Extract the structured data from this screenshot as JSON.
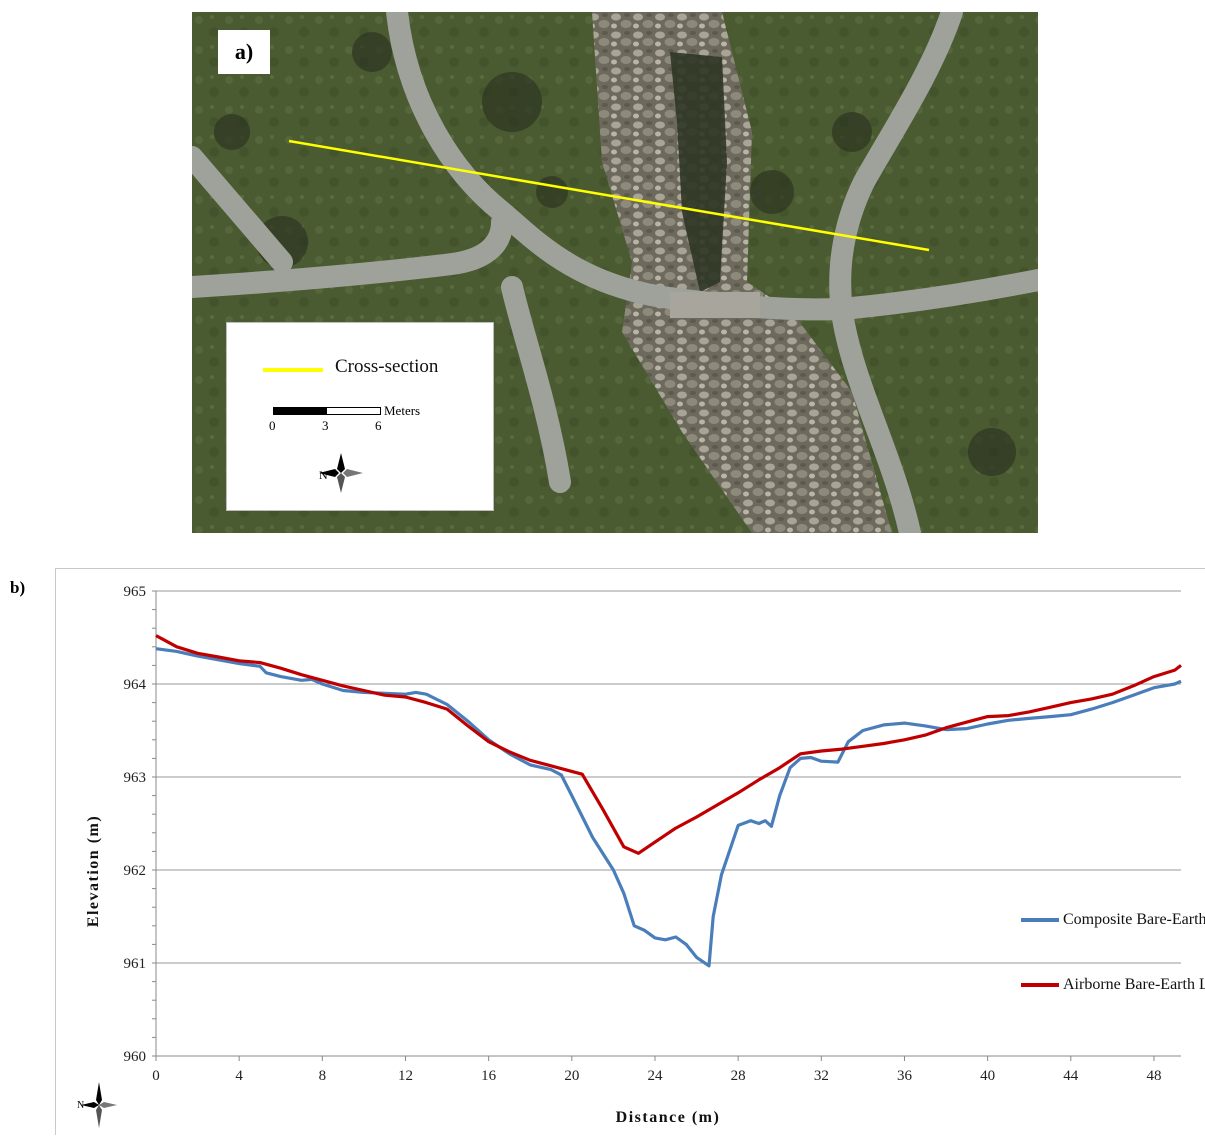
{
  "panel_a": {
    "label": "a)",
    "legend": {
      "line_label": "Cross-section",
      "line_color": "#ffff00",
      "scale_unit": "Meters",
      "scale_ticks": [
        "0",
        "3",
        "6"
      ],
      "north_label": "N"
    }
  },
  "panel_b": {
    "label": "b)",
    "north_label": "N"
  },
  "chart_data": {
    "type": "line",
    "xlabel": "Distance (m)",
    "ylabel": "Elevation (m)",
    "xlim": [
      0,
      49.3
    ],
    "ylim": [
      960,
      965
    ],
    "xticks": [
      0,
      4,
      8,
      12,
      16,
      20,
      24,
      28,
      32,
      36,
      40,
      44,
      48
    ],
    "yticks": [
      960,
      961,
      962,
      963,
      964,
      965
    ],
    "grid": "horizontal",
    "legend_position": "right",
    "series": [
      {
        "name": "Composite Bare-Earth LiDAR",
        "color": "#4a7ebb",
        "points": [
          [
            0,
            964.38
          ],
          [
            1,
            964.35
          ],
          [
            2,
            964.3
          ],
          [
            3,
            964.26
          ],
          [
            4,
            964.22
          ],
          [
            5,
            964.19
          ],
          [
            5.3,
            964.12
          ],
          [
            6,
            964.08
          ],
          [
            7,
            964.04
          ],
          [
            7.5,
            964.05
          ],
          [
            8,
            964.0
          ],
          [
            9,
            963.93
          ],
          [
            10,
            963.91
          ],
          [
            11,
            963.9
          ],
          [
            12,
            963.89
          ],
          [
            12.5,
            963.91
          ],
          [
            13,
            963.89
          ],
          [
            14,
            963.78
          ],
          [
            15,
            963.6
          ],
          [
            16,
            963.4
          ],
          [
            17,
            963.25
          ],
          [
            18,
            963.13
          ],
          [
            19,
            963.08
          ],
          [
            19.5,
            963.02
          ],
          [
            20,
            962.8
          ],
          [
            21,
            962.35
          ],
          [
            22,
            962.0
          ],
          [
            22.5,
            961.75
          ],
          [
            23,
            961.4
          ],
          [
            23.5,
            961.35
          ],
          [
            24,
            961.27
          ],
          [
            24.5,
            961.25
          ],
          [
            25,
            961.28
          ],
          [
            25.5,
            961.2
          ],
          [
            26,
            961.06
          ],
          [
            26.6,
            960.97
          ],
          [
            26.8,
            961.5
          ],
          [
            27.2,
            961.95
          ],
          [
            28,
            962.48
          ],
          [
            28.6,
            962.53
          ],
          [
            29,
            962.5
          ],
          [
            29.3,
            962.53
          ],
          [
            29.6,
            962.47
          ],
          [
            30,
            962.8
          ],
          [
            30.5,
            963.1
          ],
          [
            31,
            963.2
          ],
          [
            31.5,
            963.21
          ],
          [
            32,
            963.17
          ],
          [
            32.8,
            963.16
          ],
          [
            33.3,
            963.38
          ],
          [
            34,
            963.5
          ],
          [
            35,
            963.56
          ],
          [
            36,
            963.58
          ],
          [
            37,
            963.55
          ],
          [
            38,
            963.51
          ],
          [
            39,
            963.52
          ],
          [
            40,
            963.57
          ],
          [
            41,
            963.61
          ],
          [
            42,
            963.63
          ],
          [
            43,
            963.65
          ],
          [
            44,
            963.67
          ],
          [
            45,
            963.73
          ],
          [
            46,
            963.8
          ],
          [
            47,
            963.88
          ],
          [
            48,
            963.96
          ],
          [
            49,
            964.0
          ],
          [
            49.3,
            964.03
          ]
        ]
      },
      {
        "name": "Airborne Bare-Earth LiDAR",
        "color": "#c00000",
        "points": [
          [
            0,
            964.52
          ],
          [
            1,
            964.4
          ],
          [
            2,
            964.33
          ],
          [
            3,
            964.29
          ],
          [
            4,
            964.25
          ],
          [
            5,
            964.23
          ],
          [
            6,
            964.17
          ],
          [
            7,
            964.1
          ],
          [
            8,
            964.04
          ],
          [
            9,
            963.98
          ],
          [
            10,
            963.93
          ],
          [
            11,
            963.88
          ],
          [
            12,
            963.86
          ],
          [
            13,
            963.8
          ],
          [
            14,
            963.73
          ],
          [
            15,
            963.55
          ],
          [
            16,
            963.38
          ],
          [
            17,
            963.27
          ],
          [
            18,
            963.18
          ],
          [
            19,
            963.12
          ],
          [
            20,
            963.06
          ],
          [
            20.5,
            963.03
          ],
          [
            21.5,
            962.65
          ],
          [
            22.5,
            962.25
          ],
          [
            23.2,
            962.18
          ],
          [
            24,
            962.3
          ],
          [
            25,
            962.45
          ],
          [
            26,
            962.57
          ],
          [
            27,
            962.7
          ],
          [
            28,
            962.83
          ],
          [
            29,
            962.97
          ],
          [
            30,
            963.1
          ],
          [
            31,
            963.25
          ],
          [
            32,
            963.28
          ],
          [
            33,
            963.3
          ],
          [
            34,
            963.33
          ],
          [
            35,
            963.36
          ],
          [
            36,
            963.4
          ],
          [
            37,
            963.45
          ],
          [
            38,
            963.53
          ],
          [
            39,
            963.59
          ],
          [
            40,
            963.65
          ],
          [
            41,
            963.66
          ],
          [
            42,
            963.7
          ],
          [
            43,
            963.75
          ],
          [
            44,
            963.8
          ],
          [
            45,
            963.84
          ],
          [
            46,
            963.89
          ],
          [
            47,
            963.98
          ],
          [
            48,
            964.08
          ],
          [
            49,
            964.15
          ],
          [
            49.3,
            964.2
          ]
        ]
      }
    ]
  }
}
